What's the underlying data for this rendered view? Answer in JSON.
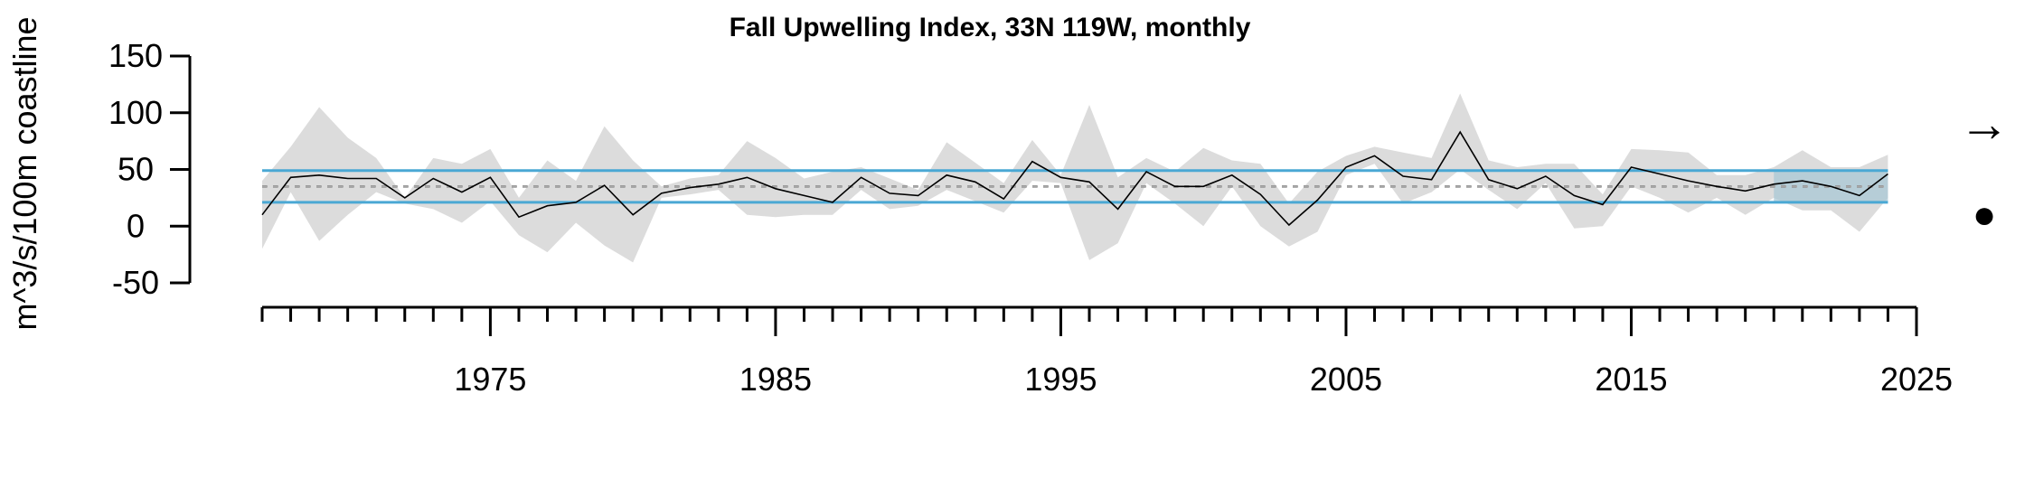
{
  "chart_data": {
    "type": "line",
    "title": "Fall Upwelling Index, 33N 119W, monthly",
    "ylabel": "m^3/s/100m coastline",
    "xlabel": "",
    "ylim": [
      -50,
      150
    ],
    "xlim": [
      1967,
      2025
    ],
    "yticks": [
      150,
      100,
      50,
      0,
      -50
    ],
    "xticks_labeled": [
      1975,
      1985,
      1995,
      2005,
      2015,
      2025
    ],
    "x_minor_ticks_start": 1967,
    "x_minor_ticks_end": 2025,
    "series": [
      {
        "x": [
          1967,
          1968,
          1969,
          1970,
          1971,
          1972,
          1973,
          1974,
          1975,
          1976,
          1977,
          1978,
          1979,
          1980,
          1981,
          1982,
          1983,
          1984,
          1985,
          1986,
          1987,
          1988,
          1989,
          1990,
          1991,
          1992,
          1993,
          1994,
          1995,
          1996,
          1997,
          1998,
          1999,
          2000,
          2001,
          2002,
          2003,
          2004,
          2005,
          2006,
          2007,
          2008,
          2009,
          2010,
          2011,
          2012,
          2013,
          2014,
          2015,
          2016,
          2017,
          2018,
          2019,
          2020,
          2021,
          2022,
          2023,
          2024
        ],
        "values": [
          10,
          43,
          45,
          42,
          42,
          25,
          42,
          30,
          43,
          8,
          18,
          21,
          36,
          10,
          29,
          34,
          37,
          43,
          33,
          27,
          21,
          43,
          29,
          27,
          45,
          39,
          24,
          57,
          43,
          39,
          15,
          48,
          35,
          35,
          45,
          28,
          1,
          23,
          52,
          62,
          44,
          41,
          83,
          41,
          33,
          44,
          27,
          19,
          52,
          46,
          40,
          35,
          31,
          37,
          40,
          35,
          27,
          46
        ],
        "upper": [
          40,
          70,
          105,
          78,
          60,
          25,
          60,
          55,
          68,
          25,
          58,
          40,
          88,
          58,
          35,
          42,
          45,
          75,
          60,
          42,
          48,
          52,
          42,
          32,
          74,
          56,
          38,
          76,
          45,
          107,
          43,
          60,
          48,
          69,
          58,
          55,
          20,
          48,
          62,
          70,
          65,
          60,
          117,
          58,
          52,
          55,
          55,
          28,
          68,
          67,
          65,
          45,
          45,
          52,
          67,
          52,
          52,
          63
        ],
        "lower": [
          -20,
          30,
          -13,
          10,
          30,
          20,
          15,
          3,
          22,
          -8,
          -23,
          3,
          -17,
          -32,
          25,
          28,
          32,
          10,
          8,
          10,
          10,
          32,
          15,
          18,
          32,
          22,
          12,
          40,
          38,
          -30,
          -15,
          38,
          20,
          0,
          35,
          0,
          -18,
          -5,
          45,
          55,
          20,
          30,
          50,
          32,
          15,
          38,
          -2,
          0,
          35,
          25,
          12,
          25,
          10,
          25,
          14,
          14,
          -5,
          25
        ]
      }
    ],
    "mean_line": 35,
    "mean_line_dashed_gray": 35,
    "sd_upper": 49,
    "sd_lower": 21,
    "last_period_start": 2020,
    "last_period_end": 2024,
    "trend_symbol": "→",
    "mean_symbol": "●",
    "colors": {
      "envelope": "#dcdcdc",
      "line": "#000000",
      "sd_lines": "#4aa8d4",
      "last_period_shade": "#a9c8d6",
      "mean_dotted": "#000000",
      "gray_dashed": "#a8a8a8"
    }
  }
}
